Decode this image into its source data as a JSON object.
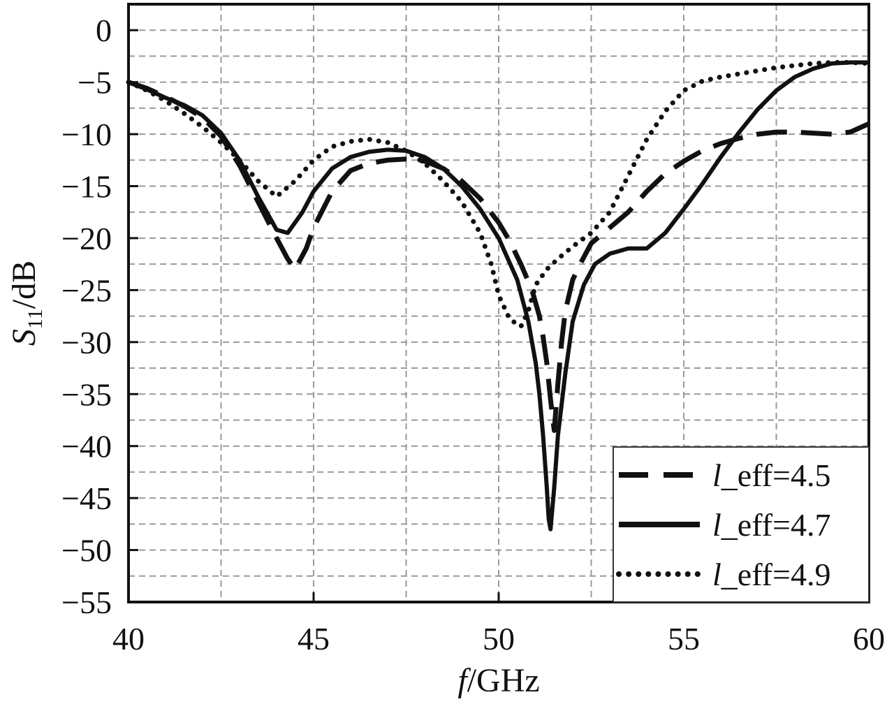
{
  "chart_data": {
    "type": "line",
    "xlabel": {
      "italic": "f",
      "rest": "/GHz"
    },
    "ylabel": {
      "italic": "S",
      "sub": "11",
      "rest": "/dB"
    },
    "xlim": [
      40,
      60
    ],
    "ylim": [
      -55,
      2.5
    ],
    "x_ticks": [
      40,
      45,
      50,
      55,
      60
    ],
    "x_tick_labels": [
      "40",
      "45",
      "50",
      "55",
      "60"
    ],
    "y_ticks": [
      0,
      -5,
      -10,
      -15,
      -20,
      -25,
      -30,
      -35,
      -40,
      -45,
      -50,
      -55
    ],
    "y_tick_labels": [
      "0",
      "−5",
      "−10",
      "−15",
      "−20",
      "−25",
      "−30",
      "−35",
      "−40",
      "−45",
      "−50",
      "−55"
    ],
    "grid": true,
    "grid_style": "dashed",
    "legend_position": "bottom-right",
    "series": [
      {
        "name": "l_eff=4.5",
        "legend_italic": "l",
        "legend_rest": "_eff=4.5",
        "style": "dashed",
        "x": [
          40,
          40.5,
          41,
          41.5,
          42,
          42.5,
          43,
          43.5,
          44,
          44.3,
          44.5,
          44.8,
          45,
          45.5,
          46,
          46.5,
          47,
          47.5,
          48,
          48.5,
          49,
          49.5,
          50,
          50.3,
          50.6,
          50.9,
          51.1,
          51.2,
          51.3,
          51.4,
          51.5,
          51.6,
          51.7,
          51.8,
          52,
          52.2,
          52.5,
          53,
          53.5,
          54,
          54.5,
          55,
          55.5,
          56,
          56.5,
          57,
          57.5,
          58,
          58.5,
          59,
          59.5,
          60
        ],
        "y": [
          -5,
          -5.6,
          -6.4,
          -7.3,
          -8.4,
          -10.2,
          -13,
          -16.5,
          -20,
          -22,
          -23,
          -21,
          -19,
          -15.5,
          -13.5,
          -12.8,
          -12.5,
          -12.4,
          -12.6,
          -13.3,
          -14.5,
          -16.2,
          -18.5,
          -20.3,
          -22.5,
          -25,
          -27.5,
          -29.5,
          -32,
          -35.5,
          -38.5,
          -34,
          -30,
          -27,
          -24,
          -22.5,
          -20.5,
          -19,
          -17.5,
          -15.5,
          -13.8,
          -12.6,
          -11.6,
          -10.9,
          -10.4,
          -10,
          -9.8,
          -9.8,
          -9.9,
          -10,
          -9.8,
          -9
        ]
      },
      {
        "name": "l_eff=4.7",
        "legend_italic": "l",
        "legend_rest": "_eff=4.7",
        "style": "solid",
        "x": [
          40,
          40.5,
          41,
          41.5,
          42,
          42.5,
          43,
          43.5,
          44,
          44.3,
          44.7,
          45,
          45.5,
          46,
          46.5,
          47,
          47.5,
          48,
          48.5,
          49,
          49.5,
          50,
          50.5,
          50.8,
          51,
          51.1,
          51.2,
          51.3,
          51.35,
          51.4,
          51.5,
          51.6,
          51.8,
          52,
          52.3,
          52.6,
          53,
          53.5,
          54,
          54.5,
          55,
          55.5,
          56,
          56.5,
          57,
          57.5,
          58,
          58.5,
          59,
          59.5,
          60
        ],
        "y": [
          -5,
          -5.7,
          -6.5,
          -7.2,
          -8.2,
          -9.9,
          -12.5,
          -16,
          -19.2,
          -19.5,
          -17.5,
          -15.5,
          -13.3,
          -12.2,
          -11.7,
          -11.5,
          -11.6,
          -12.2,
          -13.3,
          -15,
          -17.2,
          -20,
          -24,
          -28,
          -32,
          -35,
          -39,
          -44,
          -47,
          -48,
          -44,
          -39,
          -33,
          -28,
          -24.5,
          -22.5,
          -21.5,
          -21,
          -21,
          -19.5,
          -17.2,
          -14.8,
          -12.2,
          -9.8,
          -7.6,
          -5.8,
          -4.5,
          -3.7,
          -3.2,
          -3.1,
          -3.1
        ]
      },
      {
        "name": "l_eff=4.9",
        "legend_italic": "l",
        "legend_rest": "_eff=4.9",
        "style": "dotted",
        "x": [
          40,
          40.5,
          41,
          41.5,
          42,
          42.5,
          43,
          43.5,
          44,
          44.5,
          45,
          45.5,
          46,
          46.5,
          47,
          47.5,
          48,
          48.5,
          49,
          49.5,
          49.8,
          50,
          50.3,
          50.6,
          50.8,
          51,
          51.3,
          51.6,
          52,
          52.5,
          53,
          53.5,
          54,
          54.5,
          55,
          55.5,
          56,
          56.5,
          57,
          57.5,
          58,
          58.5,
          59,
          59.5,
          60
        ],
        "y": [
          -5,
          -5.8,
          -6.8,
          -8,
          -9.3,
          -10.8,
          -12.5,
          -14.5,
          -16,
          -14.5,
          -12.5,
          -11.2,
          -10.7,
          -10.5,
          -10.8,
          -11.6,
          -12.8,
          -14.5,
          -16.5,
          -19.5,
          -22.5,
          -25.5,
          -27.8,
          -28.5,
          -27,
          -24.5,
          -23,
          -22,
          -20.8,
          -19.5,
          -17.5,
          -14,
          -10.5,
          -7.8,
          -5.8,
          -4.9,
          -4.5,
          -4.2,
          -3.9,
          -3.6,
          -3.4,
          -3.2,
          -3.1,
          -3.1,
          -3.2
        ]
      }
    ]
  }
}
